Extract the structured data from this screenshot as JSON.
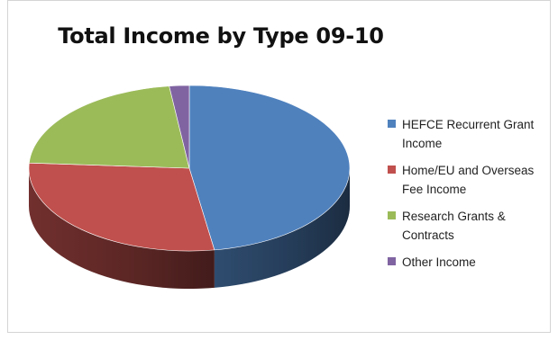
{
  "chart_data": {
    "type": "pie",
    "title": "Total Income by Type 09-10",
    "categories": [
      "HEFCE Recurrent Grant Income",
      "Home/EU and Overseas Fee Income",
      "Research Grants & Contracts",
      "Other Income"
    ],
    "values": [
      47.5,
      28.5,
      22.0,
      2.0
    ],
    "colors": [
      "#4f81bd",
      "#c0504d",
      "#9bbb59",
      "#8064a2"
    ],
    "legend_position": "right"
  },
  "legend": [
    {
      "line1": "HEFCE Recurrent Grant",
      "line2": "Income",
      "color": "#4f81bd"
    },
    {
      "line1": "Home/EU and Overseas",
      "line2": "Fee Income",
      "color": "#c0504d"
    },
    {
      "line1": "Research Grants &",
      "line2": "Contracts",
      "color": "#9bbb59"
    },
    {
      "line1": "Other Income",
      "line2": "",
      "color": "#8064a2"
    }
  ]
}
